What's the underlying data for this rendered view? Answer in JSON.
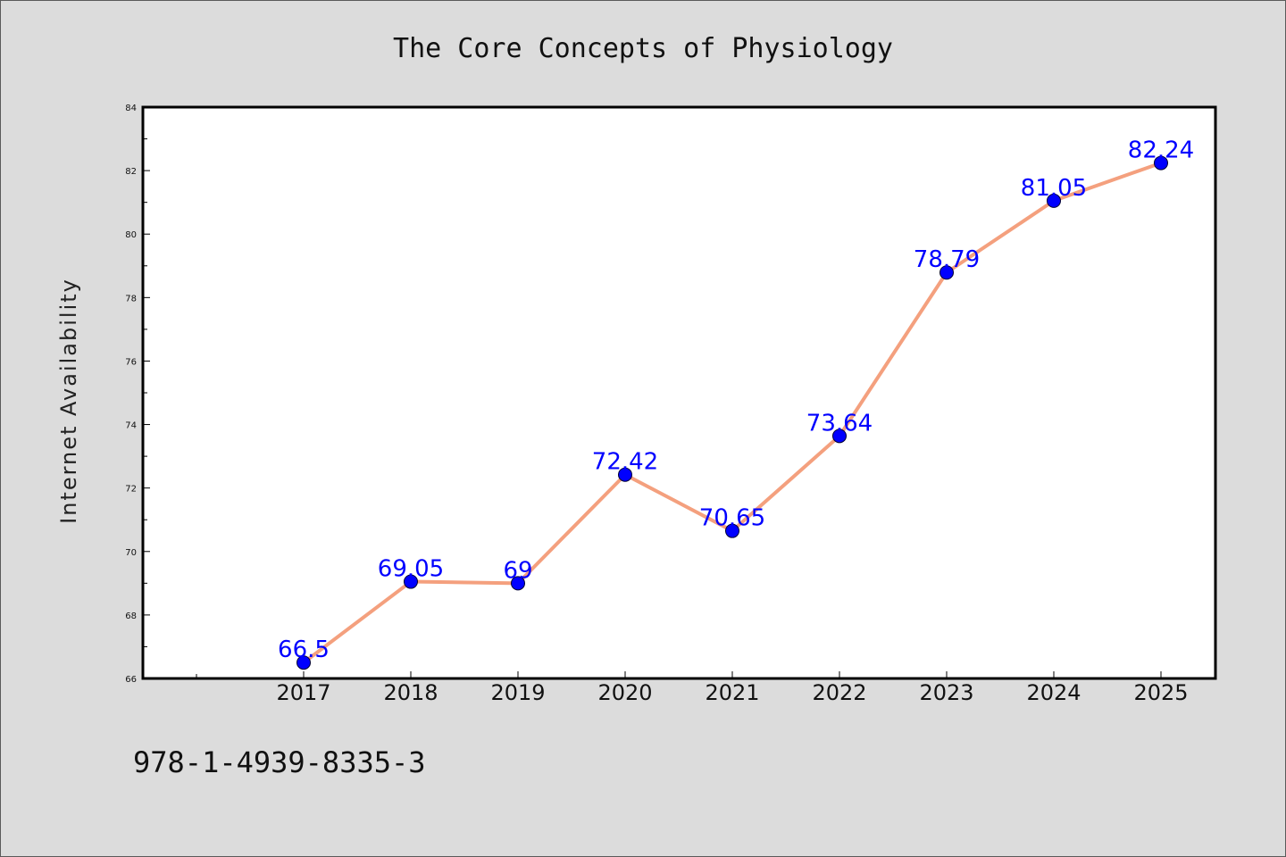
{
  "chart_data": {
    "type": "line",
    "title": "The Core Concepts of Physiology",
    "xlabel": "",
    "ylabel": "Internet Availability",
    "categories": [
      "2017",
      "2018",
      "2019",
      "2020",
      "2021",
      "2022",
      "2023",
      "2024",
      "2025"
    ],
    "series": [
      {
        "values": [
          66.5,
          69.05,
          69,
          72.42,
          70.65,
          73.64,
          78.79,
          81.05,
          82.24
        ],
        "labels": [
          "66.5",
          "69.05",
          "69",
          "72.42",
          "70.65",
          "73.64",
          "78.79",
          "81.05",
          "82.24"
        ]
      }
    ],
    "ylim": [
      66,
      84
    ],
    "yticks": [
      "66",
      "68",
      "70",
      "72",
      "74",
      "76",
      "78",
      "80",
      "82",
      "84"
    ],
    "grid": false,
    "legend": "none",
    "colors": {
      "line": "#f4a07e",
      "marker": "#0000ff",
      "label": "#0000ff",
      "background": "#dcdcdc",
      "plot_background": "#ffffff"
    }
  },
  "footer": {
    "isbn": "978-1-4939-8335-3"
  }
}
